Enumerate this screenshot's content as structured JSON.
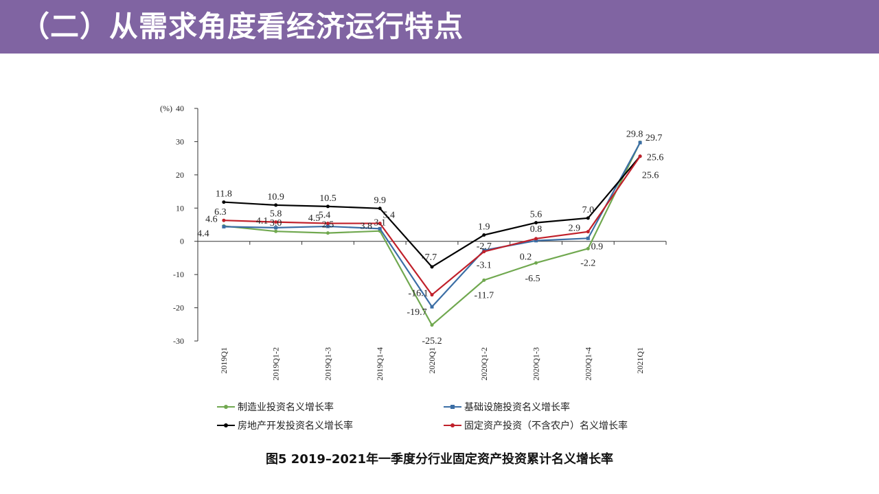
{
  "header": {
    "title": "（二）从需求角度看经济运行特点"
  },
  "caption": "图5 2019–2021年一季度分行业固定资产投资累计名义增长率",
  "colors": {
    "banner": "#8064a2",
    "manufacturing": "#70a84f",
    "infrastructure": "#3b6ea5",
    "realestate": "#000000",
    "fixed": "#c0202a"
  },
  "chart_data": {
    "type": "line",
    "unit_label": "(%)",
    "ylim": [
      -30,
      40
    ],
    "yticks": [
      40,
      30,
      20,
      10,
      0,
      -10,
      -20,
      -30
    ],
    "categories": [
      "2019Q1",
      "2019Q1-2",
      "2019Q1-3",
      "2019Q1-4",
      "2020Q1",
      "2020Q1-2",
      "2020Q1-3",
      "2020Q1-4",
      "2021Q1"
    ],
    "series": [
      {
        "name": "制造业投资名义增长率",
        "color": "#70a84f",
        "values": [
          4.6,
          3.0,
          2.5,
          3.1,
          -25.2,
          -11.7,
          -6.5,
          -2.2,
          29.8
        ],
        "labels": [
          "4.6",
          "3.0",
          "2.5",
          "3.1",
          "-25.2",
          "-11.7",
          "-6.5",
          "-2.2",
          "29.8"
        ]
      },
      {
        "name": "基础设施投资名义增长率",
        "color": "#3b6ea5",
        "values": [
          4.4,
          4.1,
          4.5,
          3.8,
          -19.7,
          -2.7,
          0.2,
          0.9,
          29.7
        ],
        "labels": [
          "4.4",
          "4.1",
          "4.5",
          "3.8",
          "-19.7",
          "-2.7",
          "0.2",
          "0.9",
          "29.7"
        ]
      },
      {
        "name": "房地产开发投资名义增长率",
        "color": "#000000",
        "values": [
          11.8,
          10.9,
          10.5,
          9.9,
          -7.7,
          1.9,
          5.6,
          7.0,
          25.6
        ],
        "labels": [
          "11.8",
          "10.9",
          "10.5",
          "9.9",
          "-7.7",
          "1.9",
          "5.6",
          "7.0",
          "25.6"
        ]
      },
      {
        "name": "固定资产投资（不含农户）名义增长率",
        "color": "#c0202a",
        "values": [
          6.3,
          5.8,
          5.4,
          5.4,
          -16.1,
          -3.1,
          0.8,
          2.9,
          25.6
        ],
        "labels": [
          "6.3",
          "5.8",
          "5.4",
          "5.4",
          "-16.1",
          "-3.1",
          "0.8",
          "2.9",
          "25.6"
        ]
      }
    ]
  },
  "legend": [
    {
      "label": "制造业投资名义增长率",
      "color": "#70a84f"
    },
    {
      "label": "基础设施投资名义增长率",
      "color": "#3b6ea5"
    },
    {
      "label": "房地产开发投资名义增长率",
      "color": "#000000"
    },
    {
      "label": "固定资产投资（不含农户）名义增长率",
      "color": "#c0202a"
    }
  ]
}
